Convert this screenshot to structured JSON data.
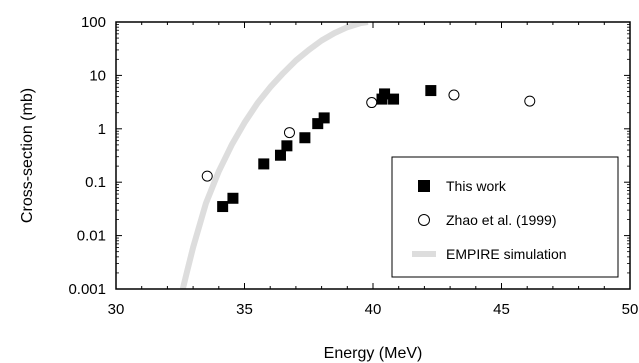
{
  "chart_data": {
    "type": "scatter",
    "xlabel": "Energy (MeV)",
    "ylabel": "Cross-section (mb)",
    "xlim": [
      30,
      50
    ],
    "ylim": [
      0.001,
      100
    ],
    "yscale": "log",
    "xticks": [
      30,
      35,
      40,
      45,
      50
    ],
    "xtick_labels": [
      "30",
      "35",
      "40",
      "45",
      "50"
    ],
    "yticks": [
      0.001,
      0.01,
      0.1,
      1,
      10,
      100
    ],
    "ytick_labels": [
      "0.001",
      "0.01",
      "0.1",
      "1",
      "10",
      "100"
    ],
    "grid": false,
    "legend_position": "bottom-right",
    "series": [
      {
        "name": "This work",
        "marker": "filled-square",
        "color": "#000000",
        "points": [
          {
            "x": 34.15,
            "y": 0.035
          },
          {
            "x": 34.55,
            "y": 0.05
          },
          {
            "x": 35.75,
            "y": 0.22
          },
          {
            "x": 36.4,
            "y": 0.32
          },
          {
            "x": 36.65,
            "y": 0.48
          },
          {
            "x": 37.35,
            "y": 0.68
          },
          {
            "x": 37.85,
            "y": 1.25
          },
          {
            "x": 38.1,
            "y": 1.6
          },
          {
            "x": 40.35,
            "y": 3.6
          },
          {
            "x": 40.45,
            "y": 4.5
          },
          {
            "x": 40.8,
            "y": 3.6
          },
          {
            "x": 42.25,
            "y": 5.2
          }
        ]
      },
      {
        "name": "Zhao et al. (1999)",
        "marker": "open-circle",
        "color": "#000000",
        "points": [
          {
            "x": 33.55,
            "y": 0.13
          },
          {
            "x": 36.75,
            "y": 0.85
          },
          {
            "x": 39.95,
            "y": 3.1
          },
          {
            "x": 43.15,
            "y": 4.3
          },
          {
            "x": 46.1,
            "y": 3.3
          }
        ]
      },
      {
        "name": "EMPIRE simulation",
        "marker": "line",
        "color": "#dddddd",
        "points": [
          {
            "x": 32.6,
            "y": 0.001
          },
          {
            "x": 32.75,
            "y": 0.002
          },
          {
            "x": 33.0,
            "y": 0.006
          },
          {
            "x": 33.5,
            "y": 0.04
          },
          {
            "x": 34.0,
            "y": 0.16
          },
          {
            "x": 34.5,
            "y": 0.5
          },
          {
            "x": 35.0,
            "y": 1.3
          },
          {
            "x": 35.5,
            "y": 3.0
          },
          {
            "x": 36.0,
            "y": 6.0
          },
          {
            "x": 36.5,
            "y": 11
          },
          {
            "x": 37.0,
            "y": 19
          },
          {
            "x": 37.5,
            "y": 30
          },
          {
            "x": 38.0,
            "y": 45
          },
          {
            "x": 38.5,
            "y": 62
          },
          {
            "x": 39.0,
            "y": 80
          },
          {
            "x": 39.5,
            "y": 95
          },
          {
            "x": 39.8,
            "y": 100
          }
        ]
      }
    ]
  }
}
